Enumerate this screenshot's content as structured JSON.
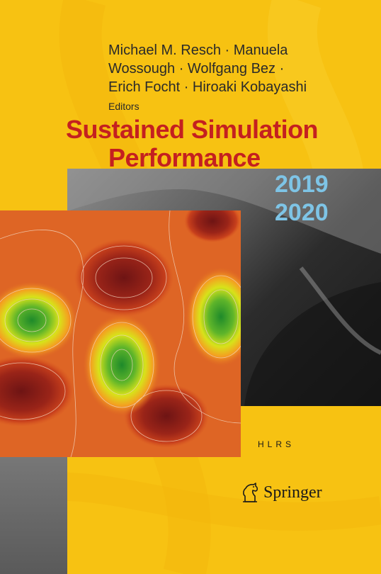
{
  "authors": {
    "line1": "Michael M. Resch · Manuela",
    "line2": "Wossough · Wolfgang Bez ·",
    "line3": "Erich Focht · Hiroaki Kobayashi",
    "role": "Editors"
  },
  "title": {
    "line1": "Sustained Simulation",
    "line2": "Performance"
  },
  "years": [
    "2019",
    "2020"
  ],
  "institute_logo": "HLRS",
  "publisher": "Springer",
  "colors": {
    "background": "#f7c212",
    "title": "#c42020",
    "years": "#7ec4e6",
    "text": "#2a2a2a"
  }
}
